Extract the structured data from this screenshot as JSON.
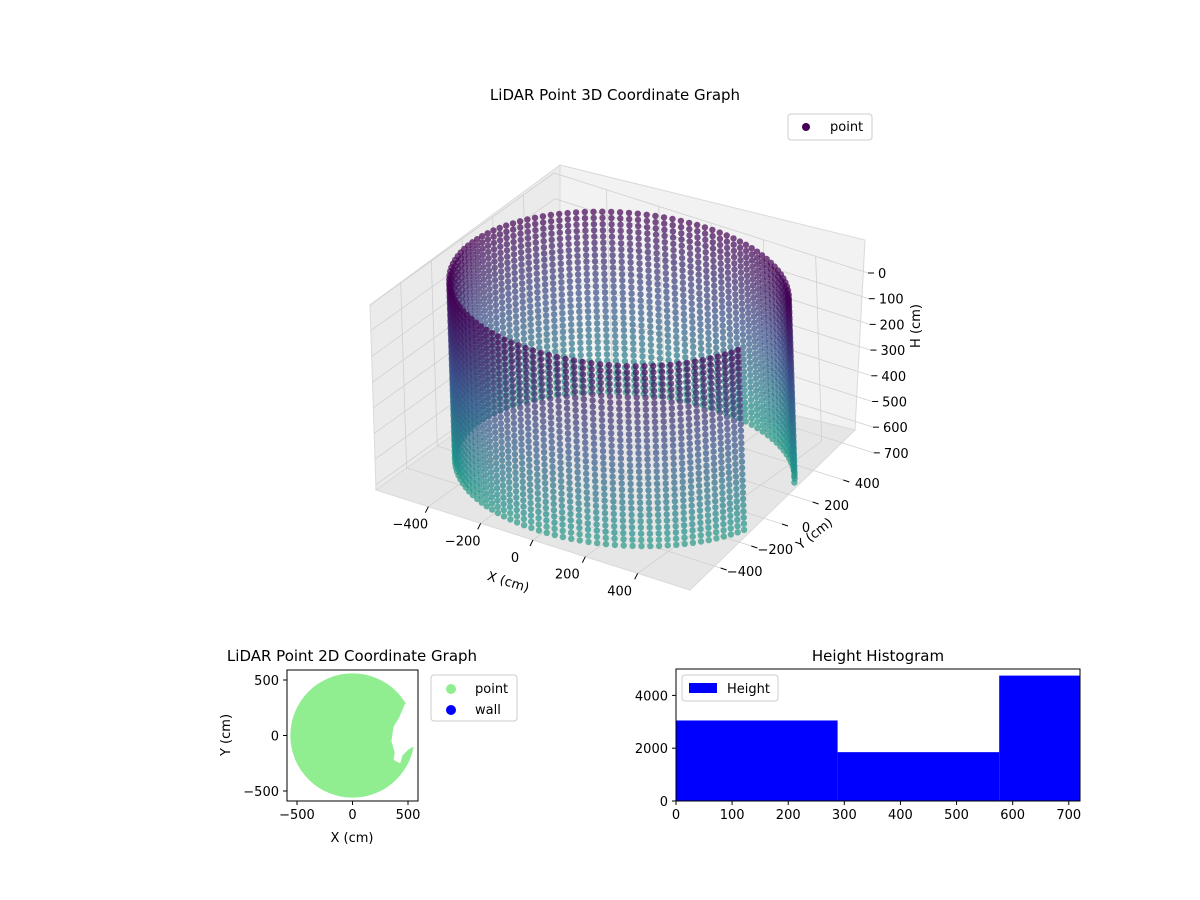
{
  "chart_data": [
    {
      "type": "scatter",
      "projection": "3d",
      "title": "LiDAR Point 3D Coordinate Graph",
      "xlabel": "X (cm)",
      "ylabel": "Y (cm)",
      "zlabel": "H (cm)",
      "xlim": [
        -600,
        600
      ],
      "ylim": [
        -600,
        600
      ],
      "zlim": [
        0,
        720
      ],
      "zaxis_inverted": true,
      "xticks": [
        "−400",
        "−200",
        "0",
        "200",
        "400"
      ],
      "xtick_values": [
        -400,
        -200,
        0,
        200,
        400
      ],
      "yticks": [
        "−400",
        "−200",
        "0",
        "200",
        "400"
      ],
      "ytick_values": [
        -400,
        -200,
        0,
        200,
        400
      ],
      "zticks": [
        "0",
        "100",
        "200",
        "300",
        "400",
        "500",
        "600",
        "700"
      ],
      "ztick_values": [
        0,
        100,
        200,
        300,
        400,
        500,
        600,
        700
      ],
      "grid": true,
      "legend": {
        "placement": "upper-right",
        "entries": [
          {
            "label": "point",
            "color": "#440154"
          }
        ]
      },
      "colormap": "viridis",
      "geometry": {
        "shape": "cylindrical-wall",
        "radius": 560,
        "height_range": [
          0,
          700
        ],
        "ring_count": 30,
        "points_per_ring": 120,
        "opening_angle_range_deg": [
          -15,
          25
        ]
      }
    },
    {
      "type": "scatter",
      "title": "LiDAR Point 2D Coordinate Graph",
      "xlabel": "X (cm)",
      "ylabel": "Y (cm)",
      "xlim": [
        -590,
        590
      ],
      "ylim": [
        -590,
        590
      ],
      "xticks": [
        "−500",
        "0",
        "500"
      ],
      "xtick_values": [
        -500,
        0,
        500
      ],
      "yticks": [
        "−500",
        "0",
        "500"
      ],
      "ytick_values": [
        -500,
        0,
        500
      ],
      "legend": {
        "placement": "outside-right",
        "entries": [
          {
            "label": "point",
            "color": "#90ee90"
          },
          {
            "label": "wall",
            "color": "#0000ff"
          }
        ]
      },
      "region": {
        "shape": "disc",
        "center": [
          0,
          0
        ],
        "radius": 560,
        "notch": [
          [
            600,
            300
          ],
          [
            470,
            280
          ],
          [
            420,
            160
          ],
          [
            370,
            80
          ],
          [
            350,
            -50
          ],
          [
            380,
            -150
          ],
          [
            370,
            -220
          ],
          [
            430,
            -250
          ],
          [
            450,
            -180
          ],
          [
            500,
            -130
          ],
          [
            550,
            -100
          ],
          [
            600,
            -20
          ]
        ]
      }
    },
    {
      "type": "bar",
      "subtype": "histogram",
      "title": "Height Histogram",
      "xlim": [
        0,
        720
      ],
      "ylim": [
        0,
        5000
      ],
      "xticks": [
        "0",
        "100",
        "200",
        "300",
        "400",
        "500",
        "600",
        "700"
      ],
      "xtick_values": [
        0,
        100,
        200,
        300,
        400,
        500,
        600,
        700
      ],
      "yticks": [
        "0",
        "2000",
        "4000"
      ],
      "ytick_values": [
        0,
        2000,
        4000
      ],
      "legend": {
        "placement": "upper-left",
        "entries": [
          {
            "label": "Height",
            "color": "#0000ff"
          }
        ]
      },
      "bins": [
        {
          "start": 0,
          "end": 288,
          "count": 3050
        },
        {
          "start": 288,
          "end": 576,
          "count": 1850
        },
        {
          "start": 576,
          "end": 720,
          "count": 4750
        }
      ]
    }
  ]
}
